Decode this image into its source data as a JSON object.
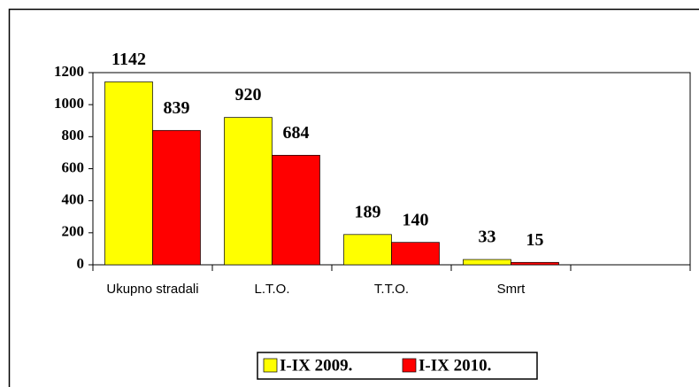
{
  "chart_data": {
    "type": "bar",
    "categories": [
      "Ukupno stradali",
      "L.T.O.",
      "T.T.O.",
      "Smrt",
      null
    ],
    "series": [
      {
        "name": "I-IX 2009.",
        "color": "#ffff00",
        "values": [
          1142,
          920,
          189,
          33,
          null
        ]
      },
      {
        "name": "I-IX 2010.",
        "color": "#ff0000",
        "values": [
          839,
          684,
          140,
          15,
          null
        ]
      }
    ],
    "ylim": [
      0,
      1200
    ],
    "yticks": [
      0,
      200,
      400,
      600,
      800,
      1000,
      1200
    ],
    "grid": false,
    "legend": "bottom"
  }
}
